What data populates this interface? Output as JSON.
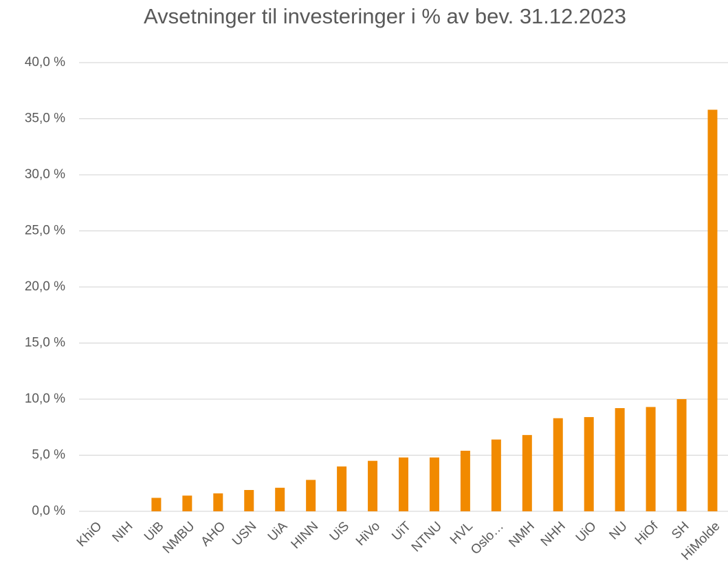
{
  "chart_data": {
    "type": "bar",
    "title": "Avsetninger til investeringer i % av bev. 31.12.2023",
    "categories": [
      "KhiO",
      "NIH",
      "UiB",
      "NMBU",
      "AHO",
      "USN",
      "UiA",
      "HINN",
      "UiS",
      "HiVo",
      "UiT",
      "NTNU",
      "HVL",
      "Oslo…",
      "NMH",
      "NHH",
      "UiO",
      "NU",
      "HiOf",
      "SH",
      "HiMolde"
    ],
    "values": [
      0,
      0,
      1.2,
      1.4,
      1.6,
      1.9,
      2.1,
      2.8,
      4.0,
      4.5,
      4.8,
      4.8,
      5.4,
      6.4,
      6.8,
      8.3,
      8.4,
      9.2,
      9.3,
      10.0,
      35.8
    ],
    "color": "#f18a00",
    "ylim": [
      0,
      40
    ],
    "yticks": [
      {
        "value": 0,
        "label": "0,0 %"
      },
      {
        "value": 5,
        "label": "5,0 %"
      },
      {
        "value": 10,
        "label": "10,0 %"
      },
      {
        "value": 15,
        "label": "15,0 %"
      },
      {
        "value": 20,
        "label": "20,0 %"
      },
      {
        "value": 25,
        "label": "25,0 %"
      },
      {
        "value": 30,
        "label": "30,0 %"
      },
      {
        "value": 35,
        "label": "35,0 %"
      },
      {
        "value": 40,
        "label": "40,0 %"
      }
    ],
    "grid": true
  }
}
